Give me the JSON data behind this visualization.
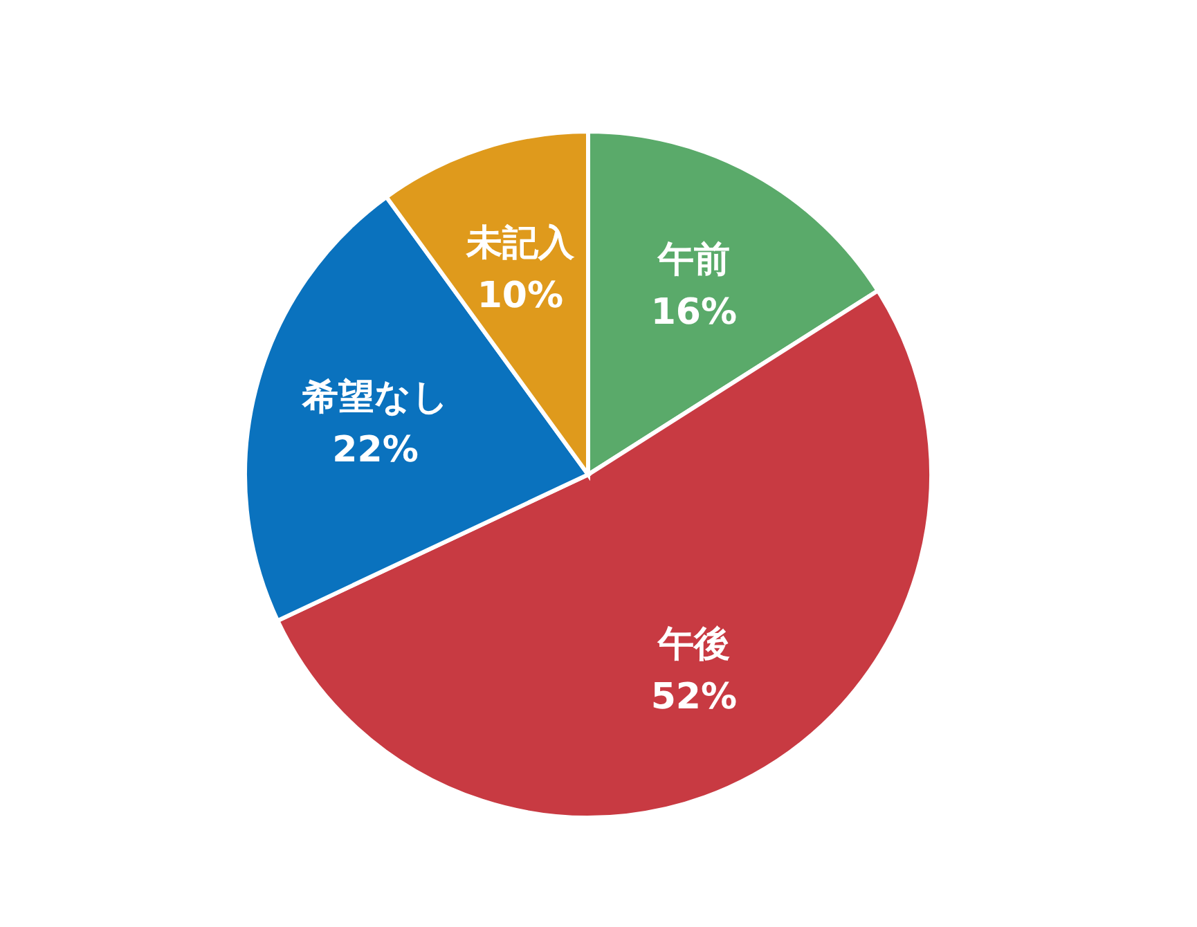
{
  "chart_data": {
    "type": "pie",
    "categories": [
      "午前",
      "午後",
      "希望なし",
      "未記入"
    ],
    "values": [
      16,
      52,
      22,
      10
    ],
    "value_labels": [
      "16%",
      "52%",
      "22%",
      "10%"
    ],
    "colors": [
      "#5aaa6a",
      "#c83a42",
      "#0a72be",
      "#df9a1c"
    ]
  }
}
